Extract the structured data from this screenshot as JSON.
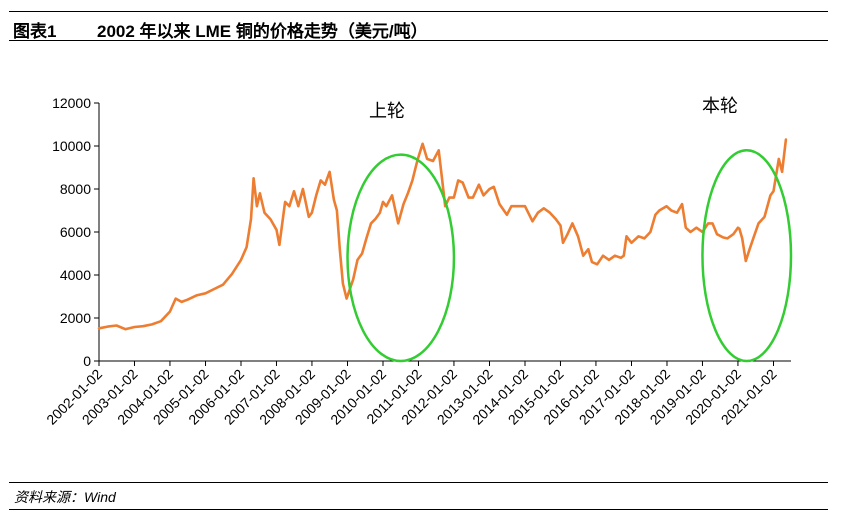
{
  "header": {
    "figure_label": "图表1",
    "title": "2002 年以来 LME 铜的价格走势（美元/吨）"
  },
  "source": "资料来源：Wind",
  "colors": {
    "series": "#ED7D31",
    "highlight": "#33CC33",
    "axis": "#000000"
  },
  "chart_data": {
    "type": "line",
    "title": "2002 年以来 LME 铜的价格走势（美元/吨）",
    "xlabel": "",
    "ylabel": "",
    "ylim": [
      0,
      12000
    ],
    "yticks": [
      0,
      2000,
      4000,
      6000,
      8000,
      10000,
      12000
    ],
    "xticks": [
      "2002-01-02",
      "2003-01-02",
      "2004-01-02",
      "2005-01-02",
      "2006-01-02",
      "2007-01-02",
      "2008-01-02",
      "2009-01-02",
      "2010-01-02",
      "2011-01-02",
      "2012-01-02",
      "2013-01-02",
      "2014-01-02",
      "2015-01-02",
      "2016-01-02",
      "2017-01-02",
      "2018-01-02",
      "2019-01-02",
      "2020-01-02",
      "2021-01-02"
    ],
    "grid": false,
    "legend": "none",
    "series": [
      {
        "x": [
          "2002-01-02",
          "2002-04-01",
          "2002-07-01",
          "2002-10-01",
          "2003-01-02",
          "2003-04-01",
          "2003-07-01",
          "2003-10-01",
          "2004-01-02",
          "2004-03-01",
          "2004-05-01",
          "2004-07-01",
          "2004-10-01",
          "2005-01-02",
          "2005-04-01",
          "2005-07-01",
          "2005-10-01",
          "2006-01-02",
          "2006-03-01",
          "2006-04-15",
          "2006-05-12",
          "2006-06-15",
          "2006-07-15",
          "2006-09-01",
          "2006-11-01",
          "2007-01-02",
          "2007-02-01",
          "2007-04-01",
          "2007-05-15",
          "2007-07-01",
          "2007-08-15",
          "2007-10-01",
          "2007-12-01",
          "2008-01-02",
          "2008-02-15",
          "2008-04-01",
          "2008-05-15",
          "2008-07-02",
          "2008-08-15",
          "2008-09-15",
          "2008-10-15",
          "2008-11-15",
          "2008-12-24",
          "2009-01-15",
          "2009-03-01",
          "2009-04-15",
          "2009-06-01",
          "2009-07-15",
          "2009-09-01",
          "2009-10-15",
          "2009-12-01",
          "2010-01-02",
          "2010-02-05",
          "2010-04-06",
          "2010-06-07",
          "2010-08-01",
          "2010-09-15",
          "2010-11-01",
          "2010-12-15",
          "2011-01-02",
          "2011-02-14",
          "2011-04-01",
          "2011-06-01",
          "2011-07-29",
          "2011-09-01",
          "2011-10-04",
          "2011-11-15",
          "2012-01-02",
          "2012-02-15",
          "2012-04-01",
          "2012-06-01",
          "2012-07-15",
          "2012-09-15",
          "2012-11-01",
          "2013-01-02",
          "2013-02-15",
          "2013-04-15",
          "2013-06-30",
          "2013-08-15",
          "2013-10-15",
          "2014-01-02",
          "2014-03-20",
          "2014-05-15",
          "2014-07-15",
          "2014-09-15",
          "2014-11-15",
          "2015-01-02",
          "2015-01-28",
          "2015-03-15",
          "2015-05-05",
          "2015-07-01",
          "2015-08-24",
          "2015-10-15",
          "2015-11-23",
          "2016-01-15",
          "2016-03-15",
          "2016-05-15",
          "2016-07-15",
          "2016-09-15",
          "2016-10-15",
          "2016-11-11",
          "2017-01-02",
          "2017-03-15",
          "2017-05-15",
          "2017-07-15",
          "2017-09-05",
          "2017-10-15",
          "2017-12-28",
          "2018-02-15",
          "2018-04-15",
          "2018-06-07",
          "2018-07-15",
          "2018-09-01",
          "2018-11-01",
          "2019-01-02",
          "2019-03-01",
          "2019-04-15",
          "2019-06-01",
          "2019-08-01",
          "2019-09-15",
          "2019-11-15",
          "2020-01-02",
          "2020-01-17",
          "2020-02-15",
          "2020-03-23",
          "2020-05-01",
          "2020-06-15",
          "2020-08-01",
          "2020-10-01",
          "2020-12-01",
          "2021-01-02",
          "2021-02-25",
          "2021-03-31",
          "2021-05-10"
        ],
        "y": [
          1520,
          1600,
          1650,
          1480,
          1580,
          1620,
          1700,
          1850,
          2300,
          2900,
          2750,
          2850,
          3050,
          3150,
          3350,
          3550,
          4050,
          4700,
          5300,
          6600,
          8500,
          7200,
          7800,
          6900,
          6600,
          6100,
          5400,
          7400,
          7200,
          7900,
          7200,
          8000,
          6700,
          6900,
          7700,
          8400,
          8200,
          8800,
          7500,
          7000,
          5200,
          3600,
          2900,
          3200,
          3800,
          4700,
          5000,
          5700,
          6400,
          6600,
          6900,
          7400,
          7200,
          7700,
          6400,
          7300,
          7800,
          8400,
          9200,
          9500,
          10100,
          9400,
          9300,
          9800,
          8500,
          7200,
          7600,
          7600,
          8400,
          8300,
          7600,
          7600,
          8200,
          7700,
          8000,
          8100,
          7300,
          6800,
          7200,
          7200,
          7200,
          6500,
          6900,
          7100,
          6900,
          6600,
          6300,
          5500,
          5900,
          6400,
          5800,
          4900,
          5200,
          4600,
          4500,
          4900,
          4700,
          4900,
          4800,
          4900,
          5800,
          5500,
          5800,
          5700,
          6000,
          6800,
          7000,
          7200,
          7000,
          6900,
          7300,
          6200,
          6000,
          6200,
          6000,
          6400,
          6400,
          5900,
          5750,
          5700,
          5900,
          6200,
          6150,
          5700,
          4650,
          5200,
          5800,
          6400,
          6700,
          7700,
          7900,
          9400,
          8800,
          10300
        ]
      }
    ],
    "annotations": [
      {
        "text": "上轮"
      },
      {
        "text": "本轮"
      }
    ],
    "highlights": [
      {
        "from": "2009-01-02",
        "to": "2012-01-02",
        "ymin": 0,
        "ymax": 9600
      },
      {
        "from": "2019-01-02",
        "to": "2021-07-01",
        "ymin": 0,
        "ymax": 9800
      }
    ]
  }
}
